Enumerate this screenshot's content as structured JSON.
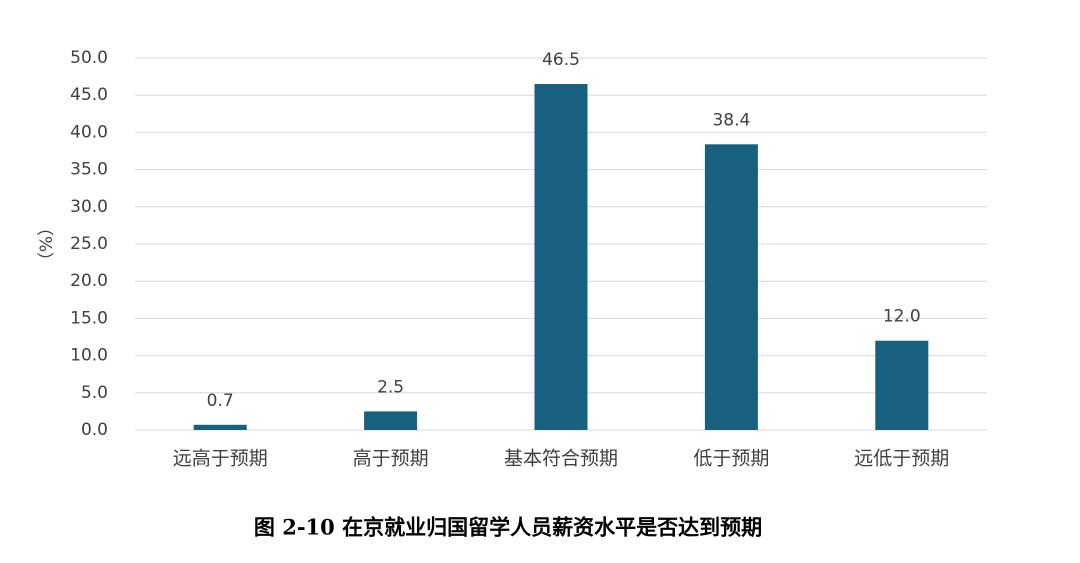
{
  "chart_data": {
    "type": "bar",
    "title": "图 2-10  在京就业归国留学人员薪资水平是否达到预期",
    "y_label": "（%）",
    "categories": [
      "远高于预期",
      "高于预期",
      "基本符合预期",
      "低于预期",
      "远低于预期"
    ],
    "values": [
      0.7,
      2.5,
      46.5,
      38.4,
      12.0
    ],
    "value_labels": [
      "0.7",
      "2.5",
      "46.5",
      "38.4",
      "12.0"
    ],
    "color": "#17607f",
    "ylim": [
      0,
      50
    ],
    "yticks": [
      {
        "value": 0,
        "label": "0.0"
      },
      {
        "value": 5,
        "label": "5.0"
      },
      {
        "value": 10,
        "label": "10.0"
      },
      {
        "value": 15,
        "label": "15.0"
      },
      {
        "value": 20,
        "label": "20.0"
      },
      {
        "value": 25,
        "label": "25.0"
      },
      {
        "value": 30,
        "label": "30.0"
      },
      {
        "value": 35,
        "label": "35.0"
      },
      {
        "value": 40,
        "label": "40.0"
      },
      {
        "value": 45,
        "label": "45.0"
      },
      {
        "value": 50,
        "label": "50.0"
      }
    ],
    "grid": true
  }
}
